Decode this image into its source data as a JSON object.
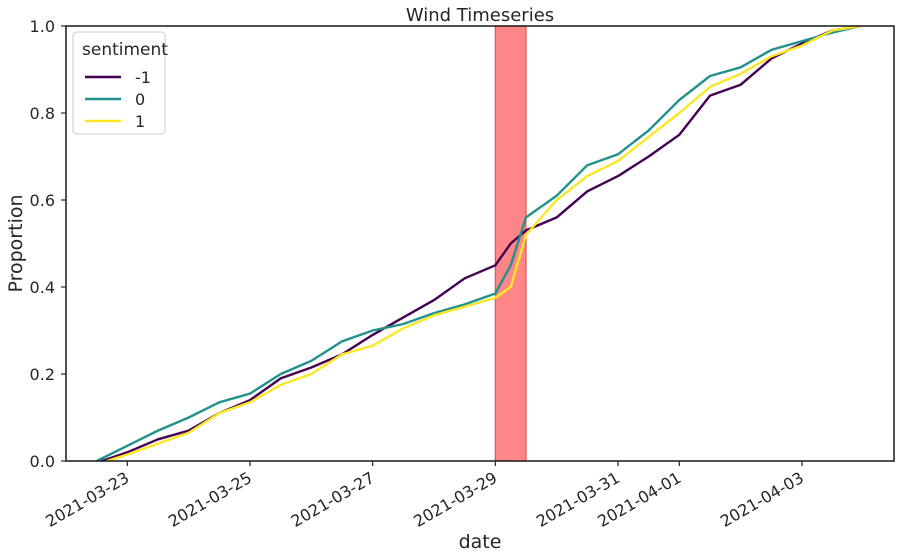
{
  "chart_data": {
    "type": "line",
    "title": "Wind Timeseries",
    "xlabel": "date",
    "ylabel": "Proportion",
    "xlim": [
      "2021-03-22T00:00",
      "2021-04-04T12:00"
    ],
    "ylim": [
      0,
      1
    ],
    "x_ticks": [
      "2021-03-23",
      "2021-03-25",
      "2021-03-27",
      "2021-03-29",
      "2021-03-31",
      "2021-04-01",
      "2021-04-03"
    ],
    "y_ticks": [
      "0.0",
      "0.2",
      "0.4",
      "0.6",
      "0.8",
      "1.0"
    ],
    "grid": false,
    "legend": {
      "title": "sentiment",
      "placement": "top-left"
    },
    "highlight_span": {
      "start": "2021-03-29T00:00",
      "end": "2021-03-29T12:00",
      "color": "#ff7f7f"
    },
    "series": [
      {
        "name": "-1",
        "color": "#440154",
        "points": [
          [
            "2021-03-22T14:00",
            0.0
          ],
          [
            "2021-03-23T00:00",
            0.02
          ],
          [
            "2021-03-23T12:00",
            0.05
          ],
          [
            "2021-03-24T00:00",
            0.07
          ],
          [
            "2021-03-24T12:00",
            0.11
          ],
          [
            "2021-03-25T00:00",
            0.14
          ],
          [
            "2021-03-25T12:00",
            0.19
          ],
          [
            "2021-03-26T00:00",
            0.215
          ],
          [
            "2021-03-26T12:00",
            0.245
          ],
          [
            "2021-03-27T00:00",
            0.29
          ],
          [
            "2021-03-27T12:00",
            0.33
          ],
          [
            "2021-03-28T00:00",
            0.37
          ],
          [
            "2021-03-28T12:00",
            0.42
          ],
          [
            "2021-03-29T00:00",
            0.45
          ],
          [
            "2021-03-29T06:00",
            0.5
          ],
          [
            "2021-03-29T12:00",
            0.53
          ],
          [
            "2021-03-30T00:00",
            0.56
          ],
          [
            "2021-03-30T12:00",
            0.62
          ],
          [
            "2021-03-31T00:00",
            0.655
          ],
          [
            "2021-03-31T12:00",
            0.7
          ],
          [
            "2021-04-01T00:00",
            0.75
          ],
          [
            "2021-04-01T12:00",
            0.84
          ],
          [
            "2021-04-02T00:00",
            0.865
          ],
          [
            "2021-04-02T12:00",
            0.925
          ],
          [
            "2021-04-03T00:00",
            0.96
          ],
          [
            "2021-04-03T12:00",
            0.99
          ],
          [
            "2021-04-03T23:00",
            1.0
          ]
        ]
      },
      {
        "name": "0",
        "color": "#21918c",
        "points": [
          [
            "2021-03-22T12:00",
            0.0
          ],
          [
            "2021-03-23T00:00",
            0.035
          ],
          [
            "2021-03-23T12:00",
            0.07
          ],
          [
            "2021-03-24T00:00",
            0.1
          ],
          [
            "2021-03-24T12:00",
            0.135
          ],
          [
            "2021-03-25T00:00",
            0.155
          ],
          [
            "2021-03-25T12:00",
            0.2
          ],
          [
            "2021-03-26T00:00",
            0.23
          ],
          [
            "2021-03-26T12:00",
            0.275
          ],
          [
            "2021-03-27T00:00",
            0.3
          ],
          [
            "2021-03-27T12:00",
            0.315
          ],
          [
            "2021-03-28T00:00",
            0.34
          ],
          [
            "2021-03-28T12:00",
            0.36
          ],
          [
            "2021-03-29T00:00",
            0.385
          ],
          [
            "2021-03-29T06:00",
            0.45
          ],
          [
            "2021-03-29T12:00",
            0.56
          ],
          [
            "2021-03-30T00:00",
            0.61
          ],
          [
            "2021-03-30T12:00",
            0.68
          ],
          [
            "2021-03-31T00:00",
            0.705
          ],
          [
            "2021-03-31T12:00",
            0.76
          ],
          [
            "2021-04-01T00:00",
            0.83
          ],
          [
            "2021-04-01T12:00",
            0.885
          ],
          [
            "2021-04-02T00:00",
            0.905
          ],
          [
            "2021-04-02T12:00",
            0.945
          ],
          [
            "2021-04-03T00:00",
            0.965
          ],
          [
            "2021-04-03T12:00",
            0.985
          ],
          [
            "2021-04-03T23:00",
            1.0
          ]
        ]
      },
      {
        "name": "1",
        "color": "#fde725",
        "points": [
          [
            "2021-03-22T16:00",
            0.0
          ],
          [
            "2021-03-23T00:00",
            0.015
          ],
          [
            "2021-03-23T12:00",
            0.04
          ],
          [
            "2021-03-24T00:00",
            0.065
          ],
          [
            "2021-03-24T12:00",
            0.11
          ],
          [
            "2021-03-25T00:00",
            0.135
          ],
          [
            "2021-03-25T12:00",
            0.175
          ],
          [
            "2021-03-26T00:00",
            0.2
          ],
          [
            "2021-03-26T12:00",
            0.245
          ],
          [
            "2021-03-27T00:00",
            0.265
          ],
          [
            "2021-03-27T12:00",
            0.305
          ],
          [
            "2021-03-28T00:00",
            0.335
          ],
          [
            "2021-03-28T12:00",
            0.355
          ],
          [
            "2021-03-29T00:00",
            0.375
          ],
          [
            "2021-03-29T06:00",
            0.4
          ],
          [
            "2021-03-29T12:00",
            0.52
          ],
          [
            "2021-03-30T00:00",
            0.6
          ],
          [
            "2021-03-30T12:00",
            0.655
          ],
          [
            "2021-03-31T00:00",
            0.69
          ],
          [
            "2021-03-31T12:00",
            0.745
          ],
          [
            "2021-04-01T00:00",
            0.8
          ],
          [
            "2021-04-01T12:00",
            0.86
          ],
          [
            "2021-04-02T00:00",
            0.89
          ],
          [
            "2021-04-02T12:00",
            0.93
          ],
          [
            "2021-04-03T00:00",
            0.955
          ],
          [
            "2021-04-03T12:00",
            0.99
          ],
          [
            "2021-04-03T23:00",
            1.0
          ]
        ]
      }
    ]
  }
}
